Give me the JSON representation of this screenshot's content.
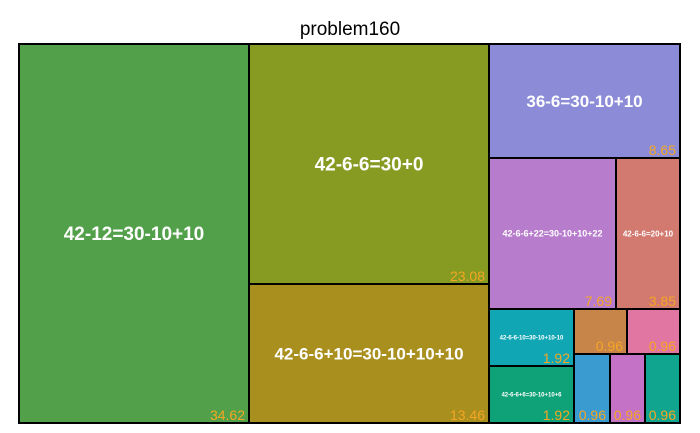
{
  "chart_data": {
    "type": "treemap",
    "title": "problem160",
    "value_color": "#f5a623",
    "items": [
      {
        "label": "42-12=30-10+10",
        "value_text": "34.62",
        "value": 34.62,
        "color": "#52a04a"
      },
      {
        "label": "42-6-6=30+0",
        "value_text": "23.08",
        "value": 23.08,
        "color": "#879a21"
      },
      {
        "label": "42-6-6+10=30-10+10+10",
        "value_text": "13.46",
        "value": 13.46,
        "color": "#a98f1d"
      },
      {
        "label": "36-6=30-10+10",
        "value_text": "8.65",
        "value": 8.65,
        "color": "#8b8bd7"
      },
      {
        "label": "42-6-6+22=30-10+10+22",
        "value_text": "7.69",
        "value": 7.69,
        "color": "#b87ccd"
      },
      {
        "label": "42-6-6=20+10",
        "value_text": "3.85",
        "value": 3.85,
        "color": "#d27970"
      },
      {
        "label": "42-6-6-10=30-10+10-10",
        "value_text": "1.92",
        "value": 1.92,
        "color": "#11a6b4"
      },
      {
        "label": "42-6-6+6=30-10+10+6",
        "value_text": "1.92",
        "value": 1.92,
        "color": "#0fa177"
      },
      {
        "label": "",
        "value_text": "0.96",
        "value": 0.96,
        "color": "#c8854a"
      },
      {
        "label": "",
        "value_text": "0.96",
        "value": 0.96,
        "color": "#e176a3"
      },
      {
        "label": "",
        "value_text": "0.96",
        "value": 0.96,
        "color": "#3a9bd0"
      },
      {
        "label": "",
        "value_text": "0.96",
        "value": 0.96,
        "color": "#c472c6"
      },
      {
        "label": "",
        "value_text": "0.96",
        "value": 0.96,
        "color": "#10a58e"
      }
    ]
  }
}
